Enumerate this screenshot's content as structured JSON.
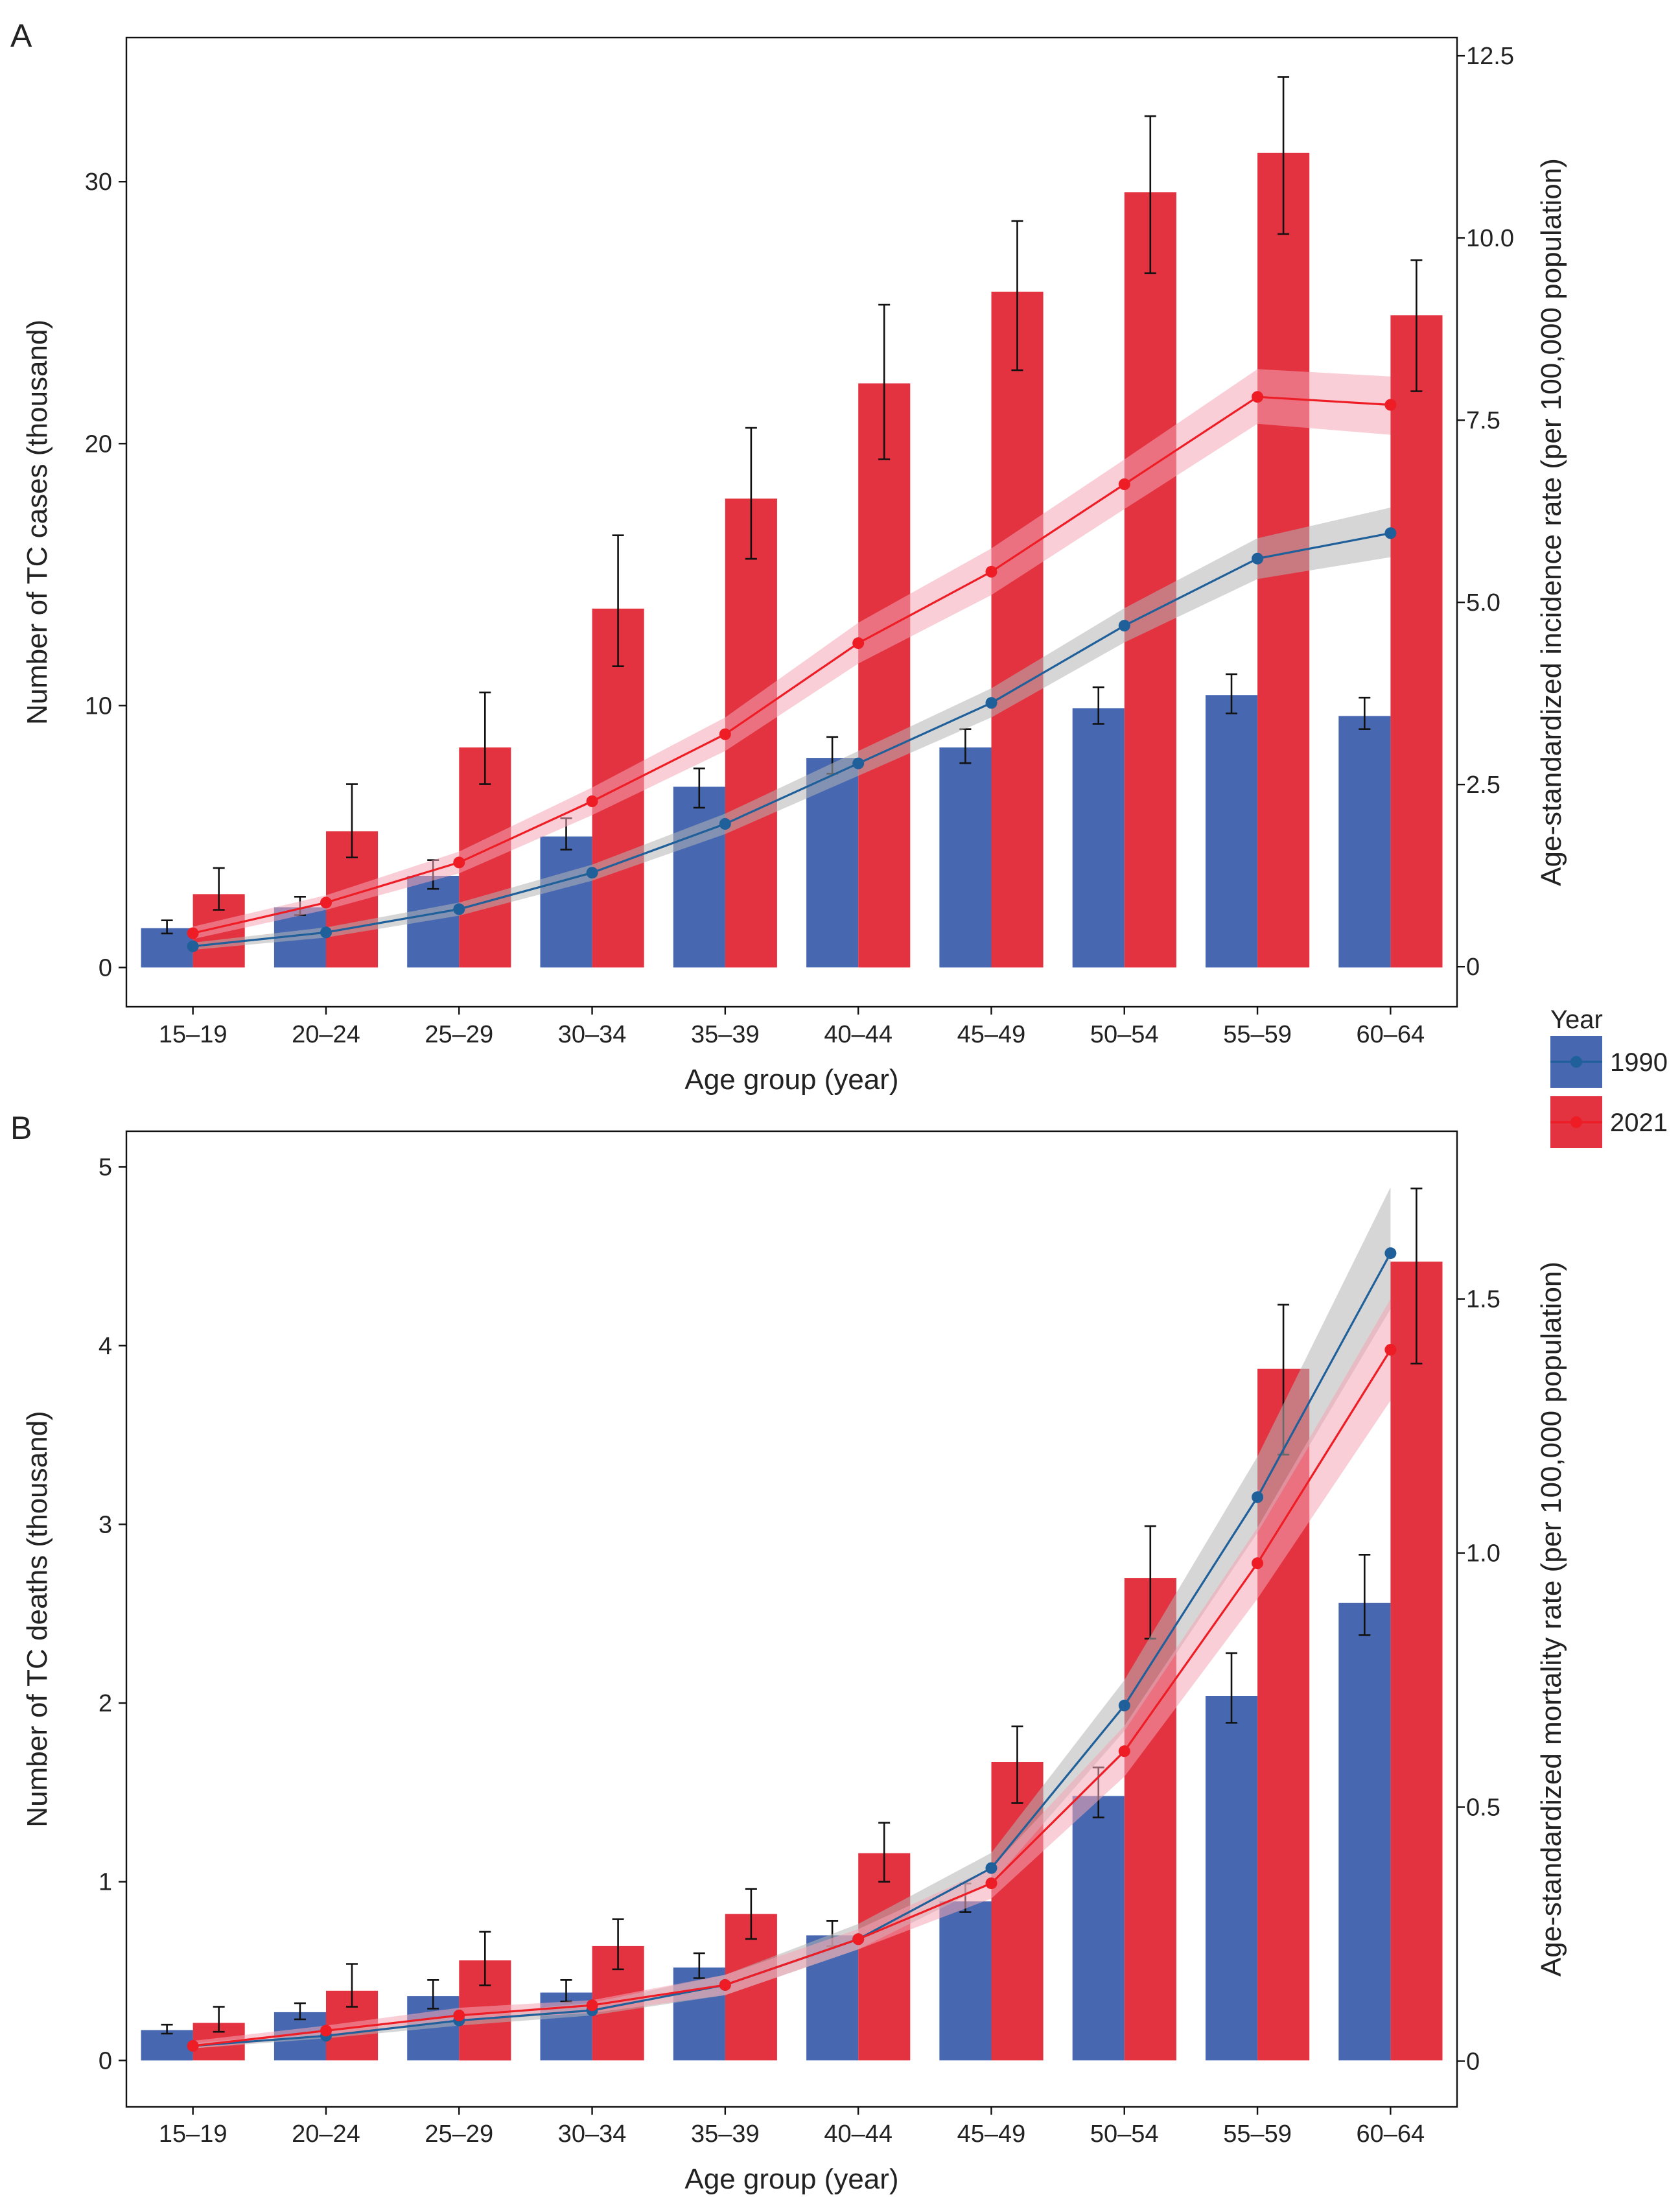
{
  "legend": {
    "title": "Year",
    "placement": "right, between panels",
    "items": [
      {
        "label": "1990",
        "color": "#4768b0"
      },
      {
        "label": "2021",
        "color": "#e33240"
      }
    ]
  },
  "colors": {
    "bar_1990": "#4768b0",
    "bar_2021": "#e33240",
    "line_1990": "#1f5f9a",
    "line_2021": "#ee1c24",
    "band_1990": "#b4b4b4",
    "band_2021": "#f4a6b4"
  },
  "chart_data": [
    {
      "panel_label": "A",
      "type": "bar",
      "categories": [
        "15–19",
        "20–24",
        "25–29",
        "30–34",
        "35–39",
        "40–44",
        "45–49",
        "50–54",
        "55–59",
        "60–64"
      ],
      "xlabel": "Age group (year)",
      "ylabel": "Number of TC cases (thousand)",
      "y2label": "Age-standardized incidence rate (per 100,000 population)",
      "ylim": [
        -1.5,
        35.5
      ],
      "y2lim": [
        -0.55,
        12.75
      ],
      "yticks": [
        {
          "v": 0,
          "t": "0"
        },
        {
          "v": 10,
          "t": "10"
        },
        {
          "v": 20,
          "t": "20"
        },
        {
          "v": 30,
          "t": "30"
        }
      ],
      "y2ticks": [
        {
          "v": 0,
          "t": "0"
        },
        {
          "v": 2.5,
          "t": "2.5"
        },
        {
          "v": 5,
          "t": "5.0"
        },
        {
          "v": 7.5,
          "t": "7.5"
        },
        {
          "v": 10,
          "t": "10.0"
        },
        {
          "v": 12.5,
          "t": "12.5"
        }
      ],
      "grid": false,
      "series": [
        {
          "name": "1990",
          "kind": "bar",
          "values": [
            1.5,
            2.3,
            3.5,
            5.0,
            6.9,
            8.0,
            8.4,
            9.9,
            10.4,
            9.6
          ],
          "err_low": [
            1.3,
            2.0,
            3.0,
            4.5,
            6.1,
            7.4,
            7.8,
            9.3,
            9.7,
            9.1
          ],
          "err_high": [
            1.8,
            2.7,
            4.1,
            5.7,
            7.6,
            8.8,
            9.1,
            10.7,
            11.2,
            10.3
          ]
        },
        {
          "name": "2021",
          "kind": "bar",
          "values": [
            2.8,
            5.2,
            8.4,
            13.7,
            17.9,
            22.3,
            25.8,
            29.6,
            31.1,
            24.9
          ],
          "err_low": [
            2.2,
            4.2,
            7.0,
            11.5,
            15.6,
            19.4,
            22.8,
            26.5,
            28.0,
            22.0
          ],
          "err_high": [
            3.8,
            7.0,
            10.5,
            16.5,
            20.6,
            25.3,
            28.5,
            32.5,
            34.0,
            27.0
          ]
        },
        {
          "name": "1990",
          "kind": "rate",
          "values": [
            0.28,
            0.47,
            0.79,
            1.29,
            1.96,
            2.79,
            3.62,
            4.68,
            5.6,
            5.95
          ],
          "band_low": [
            0.23,
            0.4,
            0.7,
            1.18,
            1.82,
            2.62,
            3.42,
            4.45,
            5.32,
            5.62
          ],
          "band_high": [
            0.33,
            0.54,
            0.88,
            1.4,
            2.1,
            2.96,
            3.82,
            4.92,
            5.88,
            6.3
          ]
        },
        {
          "name": "2021",
          "kind": "rate",
          "values": [
            0.46,
            0.88,
            1.43,
            2.27,
            3.19,
            4.44,
            5.42,
            6.62,
            7.82,
            7.71
          ],
          "band_low": [
            0.38,
            0.78,
            1.28,
            2.08,
            2.96,
            4.16,
            5.1,
            6.28,
            7.45,
            7.3
          ],
          "band_high": [
            0.55,
            0.98,
            1.58,
            2.46,
            3.42,
            4.72,
            5.74,
            6.96,
            8.2,
            8.1
          ]
        }
      ]
    },
    {
      "panel_label": "B",
      "type": "bar",
      "categories": [
        "15–19",
        "20–24",
        "25–29",
        "30–34",
        "35–39",
        "40–44",
        "45–49",
        "50–54",
        "55–59",
        "60–64"
      ],
      "xlabel": "Age group (year)",
      "ylabel": "Number of TC deaths (thousand)",
      "y2label": "Age-standardized mortality rate (per 100,000 population)",
      "ylim": [
        -0.26,
        5.2
      ],
      "y2lim": [
        -0.09,
        1.83
      ],
      "yticks": [
        {
          "v": 0,
          "t": "0"
        },
        {
          "v": 1,
          "t": "1"
        },
        {
          "v": 2,
          "t": "2"
        },
        {
          "v": 3,
          "t": "3"
        },
        {
          "v": 4,
          "t": "4"
        },
        {
          "v": 5,
          "t": "5"
        }
      ],
      "y2ticks": [
        {
          "v": 0,
          "t": "0"
        },
        {
          "v": 0.5,
          "t": "0.5"
        },
        {
          "v": 1.0,
          "t": "1.0"
        },
        {
          "v": 1.5,
          "t": "1.5"
        }
      ],
      "grid": false,
      "series": [
        {
          "name": "1990",
          "kind": "bar",
          "values": [
            0.17,
            0.27,
            0.36,
            0.38,
            0.52,
            0.7,
            0.89,
            1.48,
            2.04,
            2.56
          ],
          "err_low": [
            0.15,
            0.23,
            0.29,
            0.33,
            0.46,
            0.64,
            0.83,
            1.36,
            1.89,
            2.38
          ],
          "err_high": [
            0.2,
            0.32,
            0.45,
            0.45,
            0.6,
            0.78,
            0.99,
            1.64,
            2.28,
            2.83
          ]
        },
        {
          "name": "2021",
          "kind": "bar",
          "values": [
            0.21,
            0.39,
            0.56,
            0.64,
            0.82,
            1.16,
            1.67,
            2.7,
            3.87,
            4.47
          ],
          "err_low": [
            0.16,
            0.3,
            0.42,
            0.51,
            0.68,
            1.0,
            1.44,
            2.36,
            3.39,
            3.9
          ],
          "err_high": [
            0.3,
            0.54,
            0.72,
            0.79,
            0.96,
            1.33,
            1.87,
            2.99,
            4.23,
            4.88
          ]
        },
        {
          "name": "1990",
          "kind": "rate",
          "values": [
            0.03,
            0.05,
            0.08,
            0.1,
            0.15,
            0.24,
            0.38,
            0.7,
            1.11,
            1.59
          ],
          "band_low": [
            0.025,
            0.045,
            0.07,
            0.09,
            0.13,
            0.22,
            0.35,
            0.65,
            1.04,
            1.48
          ],
          "band_high": [
            0.035,
            0.06,
            0.09,
            0.115,
            0.17,
            0.27,
            0.41,
            0.75,
            1.19,
            1.72
          ]
        },
        {
          "name": "2021",
          "kind": "rate",
          "values": [
            0.03,
            0.06,
            0.09,
            0.11,
            0.15,
            0.24,
            0.35,
            0.61,
            0.98,
            1.4
          ],
          "band_low": [
            0.025,
            0.05,
            0.08,
            0.095,
            0.13,
            0.22,
            0.32,
            0.56,
            0.91,
            1.3
          ],
          "band_high": [
            0.04,
            0.07,
            0.105,
            0.12,
            0.17,
            0.26,
            0.38,
            0.66,
            1.05,
            1.5
          ]
        }
      ]
    }
  ]
}
